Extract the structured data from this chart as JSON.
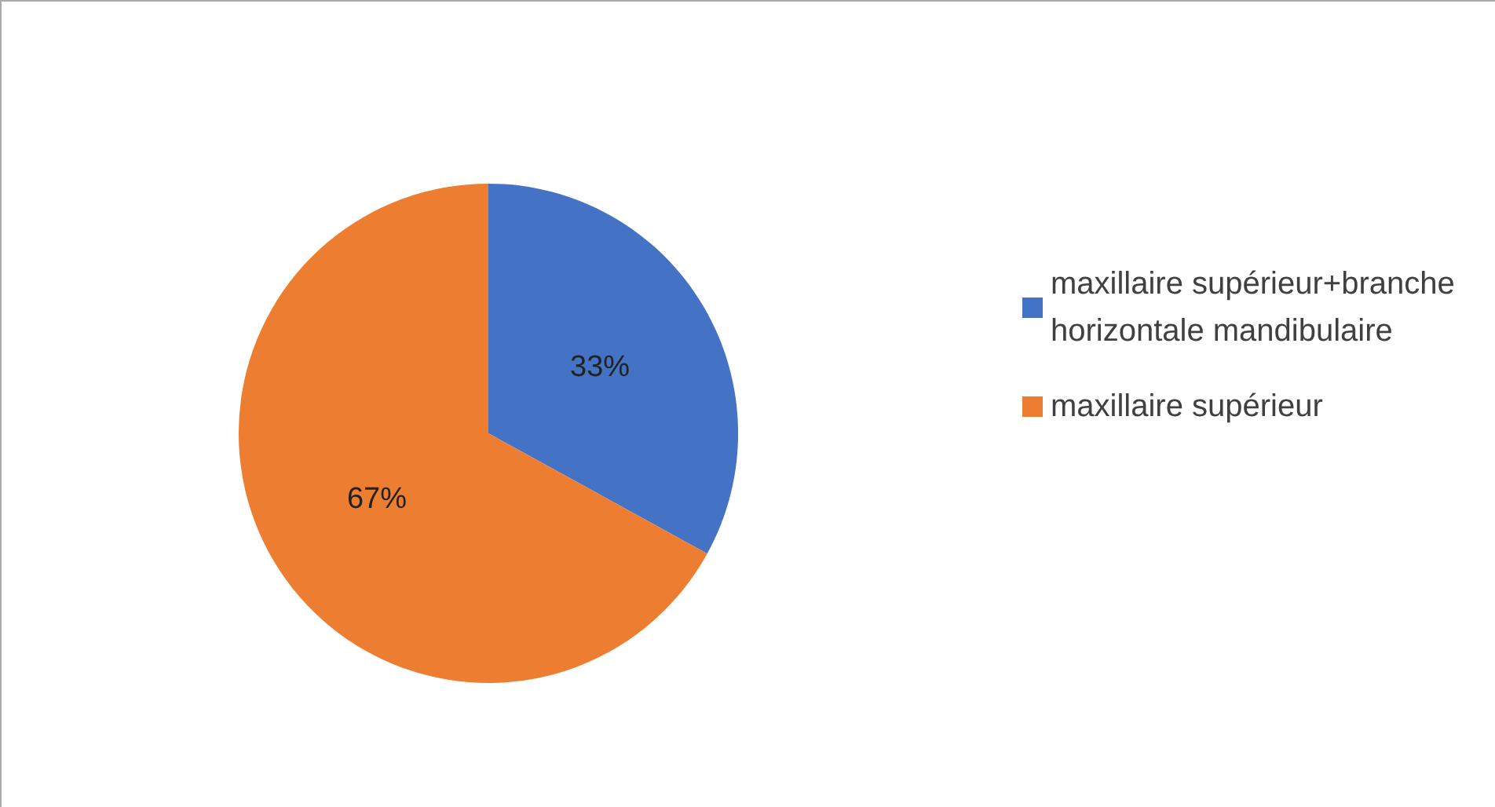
{
  "chart_data": {
    "type": "pie",
    "categories": [
      "maxillaire supérieur+branche horizontale mandibulaire",
      "maxillaire supérieur"
    ],
    "values": [
      33,
      67
    ],
    "colors": [
      "#4472c4",
      "#ed7d31"
    ],
    "value_labels": [
      "33%",
      "67%"
    ],
    "legend": "right"
  }
}
